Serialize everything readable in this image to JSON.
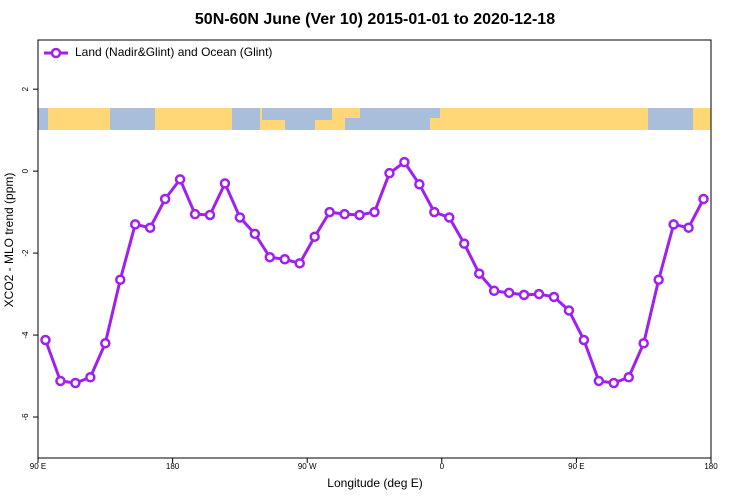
{
  "chart_data": {
    "type": "line",
    "title": "50N-60N June (Ver 10)   2015-01-01 to 2020-12-18",
    "xlabel": "Longitude (deg E)",
    "ylabel": "XCO2 - MLO trend (ppm)",
    "xlim": [
      90,
      540
    ],
    "ylim": [
      -7,
      3.2
    ],
    "xticks": [
      {
        "value": 90,
        "label": "90 E"
      },
      180,
      {
        "value": 270,
        "label": "90 W"
      },
      {
        "value": 360,
        "label": "0"
      },
      {
        "value": 450,
        "label": "90 E"
      },
      {
        "value": 540,
        "label": "180"
      }
    ],
    "yticks": [
      -6,
      -4,
      -2,
      0,
      2
    ],
    "legend": "upper left",
    "series": [
      {
        "name": "Land (Nadir&Glint) and Ocean (Glint)",
        "color": "#a020f0",
        "x": [
          95,
          105,
          115,
          125,
          135,
          145,
          155,
          165,
          175,
          185,
          195,
          205,
          215,
          225,
          235,
          245,
          255,
          265,
          275,
          285,
          295,
          305,
          315,
          325,
          335,
          345,
          355,
          365,
          375,
          385,
          395,
          405,
          415,
          425,
          435,
          445,
          455,
          465,
          475,
          485,
          495,
          505,
          515,
          525,
          535
        ],
        "values": [
          -4.12,
          -5.12,
          -5.17,
          -5.03,
          -4.2,
          -2.65,
          -1.3,
          -1.38,
          -0.68,
          -0.2,
          -1.05,
          -1.07,
          -0.3,
          -1.13,
          -1.53,
          -2.1,
          -2.15,
          -2.25,
          -1.6,
          -1.0,
          -1.05,
          -1.07,
          -1.0,
          -0.05,
          0.22,
          -0.32,
          -1.0,
          -1.13,
          -1.77,
          -2.5,
          -2.92,
          -2.97,
          -3.02,
          -3.0,
          -3.07,
          -3.4,
          -4.12,
          -5.12,
          -5.17,
          -5.03,
          -4.2,
          -2.65,
          -1.3,
          -1.38,
          -0.68
        ]
      }
    ]
  }
}
